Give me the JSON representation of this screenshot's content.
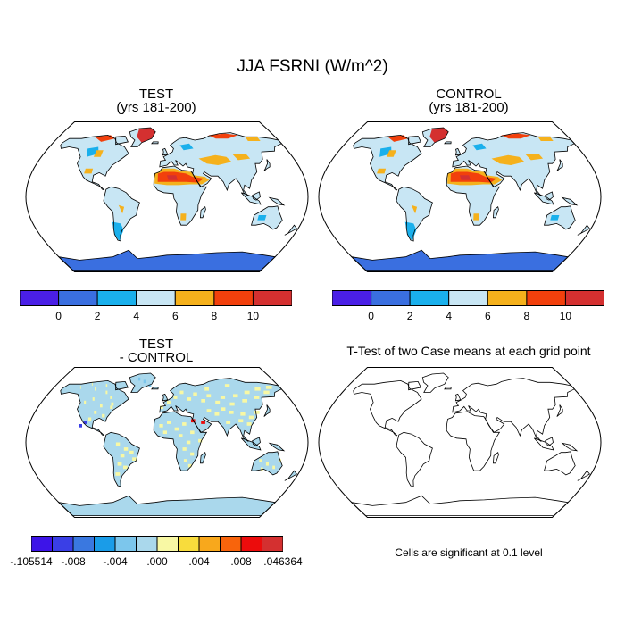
{
  "figure": {
    "title": "JJA FSRNI (W/m^2)",
    "note": "Cells are significant at 0.1 level"
  },
  "panels": [
    {
      "id": "test",
      "title_line1": "TEST",
      "title_line2": "(yrs 181-200)"
    },
    {
      "id": "control",
      "title_line1": "CONTROL",
      "title_line2": "(yrs 181-200)"
    },
    {
      "id": "diff",
      "title_line1": "TEST",
      "title_line2": "- CONTROL"
    },
    {
      "id": "ttest",
      "title_line1": "T-Test of two Case means at each grid point",
      "title_line2": ""
    }
  ],
  "colorbars": {
    "main": {
      "colors": [
        "#4a1fe6",
        "#3a6fe0",
        "#1ab0ec",
        "#c8e6f4",
        "#f5b11c",
        "#f2400c",
        "#d43030"
      ],
      "labels": [
        "0",
        "2",
        "4",
        "6",
        "8",
        "10"
      ]
    },
    "diff": {
      "colors": [
        "#3d14e8",
        "#3a3fe6",
        "#3a78e0",
        "#1a9ce8",
        "#7cc6ec",
        "#aad8ec",
        "#f8f8a4",
        "#f8dc3c",
        "#f8a81c",
        "#f8640c",
        "#ec0c0c",
        "#d43030"
      ],
      "labels": [
        "-.105514",
        "-.008",
        "-.004",
        ".000",
        ".004",
        ".008",
        ".046364"
      ]
    }
  },
  "chart_data": {
    "type": "heatmap",
    "title": "JJA FSRNI (W/m^2)",
    "variable": "FSRNI",
    "season": "JJA",
    "units": "W/m^2",
    "projection": "Robinson world map",
    "panels": [
      "TEST (yrs 181-200)",
      "CONTROL (yrs 181-200)",
      "TEST - CONTROL",
      "T-Test of two Case means at each grid point"
    ],
    "main_scale_levels": [
      0,
      2,
      4,
      6,
      8,
      10
    ],
    "diff_scale_labels": [
      "-.105514",
      "-.008",
      "-.004",
      ".000",
      ".004",
      ".008",
      ".046364"
    ],
    "test_regions": [
      {
        "region": "Antarctica",
        "bin": "0-2"
      },
      {
        "region": "Southern South America",
        "bin": "2-4"
      },
      {
        "region": "Most land areas",
        "bin": "4-6"
      },
      {
        "region": "Central Asia and Arctic coasts",
        "bin": "6-8"
      },
      {
        "region": "Sahara and Arabia",
        "bin": "8-10"
      },
      {
        "region": "Greenland and Sahara core",
        "bin": ">10"
      }
    ],
    "ttest_significant_cells": 0
  }
}
